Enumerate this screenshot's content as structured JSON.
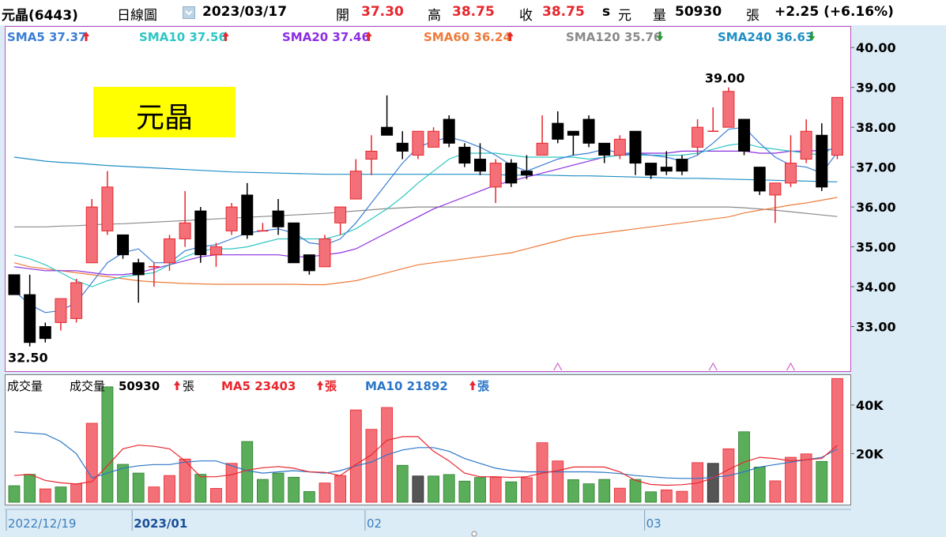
{
  "header": {
    "name": "元晶(6443)",
    "period": "日線圖",
    "date": "2023/03/17",
    "open_label": "開",
    "open": "37.30",
    "high_label": "高",
    "high": "38.75",
    "close_label": "收",
    "close": "38.75",
    "unit_s": "s",
    "unit": "元",
    "vol_label": "量",
    "vol": "50930",
    "vol_unit": "張",
    "change": "+2.25 (+6.16%)"
  },
  "legend": [
    {
      "label": "SMA5",
      "value": "37.37",
      "arrow": "up",
      "color": "#3b7fd6"
    },
    {
      "label": "SMA10",
      "value": "37.56",
      "arrow": "up",
      "color": "#2ec7c4"
    },
    {
      "label": "SMA20",
      "value": "37.46",
      "arrow": "up",
      "color": "#8b2ee0"
    },
    {
      "label": "SMA60",
      "value": "36.24",
      "arrow": "up",
      "color": "#ee7b3a"
    },
    {
      "label": "SMA120",
      "value": "35.76",
      "arrow": "down",
      "color": "#8a8a8a"
    },
    {
      "label": "SMA240",
      "value": "36.63",
      "arrow": "down",
      "color": "#1f8ec5"
    }
  ],
  "stock_label": "元晶",
  "annotations": {
    "high": "39.00",
    "low": "32.50"
  },
  "volume_legend": {
    "title": "成交量",
    "vol_label": "成交量",
    "vol_value": "50930",
    "vol_unit": "張",
    "ma5_label": "MA5",
    "ma5_value": "23403",
    "ma5_unit": "張",
    "ma10_label": "MA10",
    "ma10_value": "21892",
    "ma10_unit": "張"
  },
  "x_labels": [
    {
      "label": "2022/12/19",
      "index": 0,
      "bold": false
    },
    {
      "label": "2023/01",
      "index": 8,
      "bold": true
    },
    {
      "label": "02",
      "index": 23,
      "bold": false
    },
    {
      "label": "03",
      "index": 41,
      "bold": false
    }
  ],
  "colors": {
    "up": "#f37078",
    "down": "#000000",
    "vol_up": "#f37078",
    "vol_down": "#5aae5a",
    "vol_flat": "#555555",
    "axis_up": "#e8262d",
    "axis_down": "#2d9a38"
  },
  "chart_data": {
    "type": "candlestick",
    "y_ticks": [
      "40.00",
      "39.00",
      "38.00",
      "37.00",
      "36.00",
      "35.00",
      "34.00",
      "33.00"
    ],
    "ylim": [
      31.9,
      40.5
    ],
    "candles": [
      [
        34.3,
        33.8,
        34.3,
        33.8
      ],
      [
        33.8,
        32.6,
        34.3,
        32.5
      ],
      [
        33.0,
        32.7,
        33.1,
        32.6
      ],
      [
        33.1,
        33.7,
        33.7,
        32.9
      ],
      [
        33.2,
        34.1,
        34.2,
        33.1
      ],
      [
        34.6,
        36.0,
        36.2,
        34.6
      ],
      [
        35.4,
        36.5,
        36.9,
        35.3
      ],
      [
        35.3,
        34.8,
        35.3,
        34.7
      ],
      [
        34.6,
        34.3,
        34.7,
        33.6
      ],
      [
        34.5,
        34.5,
        34.6,
        34.0
      ],
      [
        34.6,
        35.2,
        35.3,
        34.4
      ],
      [
        35.2,
        35.6,
        36.4,
        35.0
      ],
      [
        35.9,
        34.8,
        36.0,
        34.6
      ],
      [
        34.8,
        35.0,
        35.1,
        34.5
      ],
      [
        35.4,
        36.0,
        36.1,
        35.3
      ],
      [
        36.3,
        35.3,
        36.6,
        35.2
      ],
      [
        35.4,
        35.4,
        35.6,
        35.4
      ],
      [
        35.9,
        35.5,
        36.2,
        35.3
      ],
      [
        35.6,
        34.6,
        35.6,
        34.6
      ],
      [
        34.8,
        34.4,
        34.8,
        34.3
      ],
      [
        34.5,
        35.2,
        35.3,
        34.5
      ],
      [
        35.6,
        36.0,
        36.0,
        35.3
      ],
      [
        36.2,
        36.9,
        37.2,
        36.2
      ],
      [
        37.2,
        37.4,
        37.8,
        36.8
      ],
      [
        38.0,
        37.8,
        38.8,
        37.8
      ],
      [
        37.6,
        37.4,
        37.9,
        37.2
      ],
      [
        37.3,
        37.9,
        37.9,
        37.2
      ],
      [
        37.5,
        37.9,
        38.0,
        37.5
      ],
      [
        38.2,
        37.6,
        38.3,
        37.5
      ],
      [
        37.5,
        37.1,
        37.6,
        37.0
      ],
      [
        37.2,
        36.9,
        37.6,
        36.8
      ],
      [
        36.5,
        37.1,
        37.2,
        36.1
      ],
      [
        37.1,
        36.6,
        37.2,
        36.5
      ],
      [
        36.9,
        36.8,
        37.3,
        36.7
      ],
      [
        37.3,
        37.6,
        38.3,
        37.3
      ],
      [
        38.1,
        37.7,
        38.4,
        37.6
      ],
      [
        37.9,
        37.8,
        37.9,
        37.3
      ],
      [
        38.2,
        37.6,
        38.3,
        37.5
      ],
      [
        37.6,
        37.3,
        37.6,
        37.1
      ],
      [
        37.3,
        37.7,
        37.8,
        37.2
      ],
      [
        37.9,
        37.1,
        37.9,
        36.8
      ],
      [
        37.1,
        36.8,
        37.1,
        36.7
      ],
      [
        37.0,
        36.9,
        37.4,
        36.8
      ],
      [
        37.2,
        36.9,
        37.3,
        36.8
      ],
      [
        37.5,
        38.0,
        38.2,
        37.3
      ],
      [
        37.9,
        37.9,
        38.5,
        37.9
      ],
      [
        38.0,
        38.9,
        39.0,
        38.0
      ],
      [
        38.2,
        37.4,
        38.2,
        37.3
      ],
      [
        37.0,
        36.4,
        37.0,
        36.3
      ],
      [
        36.3,
        36.6,
        36.6,
        35.6
      ],
      [
        36.6,
        37.1,
        37.8,
        36.5
      ],
      [
        37.2,
        37.9,
        38.2,
        37.1
      ],
      [
        37.8,
        36.5,
        38.1,
        36.4
      ],
      [
        37.3,
        38.75,
        38.75,
        37.2
      ]
    ],
    "sma5": [
      33.9,
      33.55,
      33.35,
      33.4,
      33.6,
      34.1,
      34.6,
      34.85,
      34.95,
      34.6,
      34.6,
      34.9,
      35.0,
      35.05,
      35.2,
      35.35,
      35.4,
      35.45,
      35.35,
      35.1,
      35.05,
      35.2,
      35.6,
      36.1,
      36.6,
      37.1,
      37.5,
      37.65,
      37.75,
      37.65,
      37.5,
      37.3,
      37.05,
      36.9,
      37.05,
      37.2,
      37.3,
      37.35,
      37.45,
      37.35,
      37.35,
      37.3,
      37.25,
      37.15,
      37.3,
      37.6,
      37.95,
      38.0,
      37.6,
      37.25,
      37.05,
      37.0,
      36.85,
      37.37
    ],
    "sma10": [
      34.8,
      34.7,
      34.55,
      34.35,
      34.15,
      34.0,
      34.15,
      34.25,
      34.3,
      34.35,
      34.55,
      34.75,
      34.9,
      34.95,
      34.95,
      35.0,
      35.1,
      35.2,
      35.2,
      35.2,
      35.2,
      35.3,
      35.45,
      35.7,
      35.95,
      36.25,
      36.6,
      36.9,
      37.2,
      37.35,
      37.35,
      37.35,
      37.3,
      37.25,
      37.25,
      37.25,
      37.25,
      37.2,
      37.25,
      37.3,
      37.3,
      37.3,
      37.3,
      37.3,
      37.35,
      37.45,
      37.55,
      37.6,
      37.5,
      37.45,
      37.4,
      37.35,
      37.3,
      37.56
    ],
    "sma20": [
      34.5,
      34.45,
      34.4,
      34.4,
      34.4,
      34.35,
      34.3,
      34.3,
      34.35,
      34.45,
      34.55,
      34.65,
      34.75,
      34.8,
      34.8,
      34.8,
      34.8,
      34.8,
      34.75,
      34.75,
      34.8,
      34.85,
      34.95,
      35.15,
      35.35,
      35.55,
      35.75,
      35.95,
      36.1,
      36.25,
      36.4,
      36.55,
      36.65,
      36.75,
      36.85,
      36.95,
      37.05,
      37.15,
      37.25,
      37.3,
      37.35,
      37.35,
      37.35,
      37.4,
      37.4,
      37.4,
      37.4,
      37.4,
      37.35,
      37.35,
      37.4,
      37.4,
      37.42,
      37.46
    ],
    "sma60": [
      34.6,
      34.5,
      34.45,
      34.4,
      34.35,
      34.3,
      34.25,
      34.2,
      34.15,
      34.12,
      34.1,
      34.08,
      34.07,
      34.06,
      34.06,
      34.06,
      34.06,
      34.06,
      34.06,
      34.05,
      34.05,
      34.1,
      34.15,
      34.25,
      34.35,
      34.45,
      34.55,
      34.6,
      34.65,
      34.7,
      34.75,
      34.8,
      34.85,
      34.95,
      35.05,
      35.15,
      35.25,
      35.3,
      35.35,
      35.4,
      35.45,
      35.5,
      35.55,
      35.6,
      35.65,
      35.7,
      35.75,
      35.85,
      35.92,
      35.98,
      36.05,
      36.1,
      36.17,
      36.24
    ],
    "sma120": [
      35.5,
      35.5,
      35.5,
      35.52,
      35.53,
      35.55,
      35.57,
      35.58,
      35.6,
      35.62,
      35.64,
      35.66,
      35.68,
      35.7,
      35.72,
      35.74,
      35.76,
      35.78,
      35.8,
      35.82,
      35.84,
      35.87,
      35.9,
      35.93,
      35.96,
      35.98,
      36.0,
      36.0,
      36.0,
      36.0,
      36.0,
      36.0,
      36.0,
      36.0,
      36.0,
      36.0,
      36.0,
      36.0,
      36.0,
      36.0,
      36.0,
      36.0,
      36.0,
      36.0,
      36.0,
      36.0,
      36.0,
      35.98,
      35.95,
      35.92,
      35.88,
      35.84,
      35.8,
      35.76
    ],
    "sma240": [
      37.25,
      37.2,
      37.15,
      37.12,
      37.1,
      37.07,
      37.04,
      37.02,
      37.0,
      36.98,
      36.96,
      36.94,
      36.92,
      36.9,
      36.88,
      36.87,
      36.86,
      36.85,
      36.84,
      36.83,
      36.82,
      36.82,
      36.82,
      36.82,
      36.82,
      36.82,
      36.82,
      36.82,
      36.82,
      36.82,
      36.82,
      36.81,
      36.8,
      36.8,
      36.8,
      36.79,
      36.78,
      36.78,
      36.77,
      36.76,
      36.75,
      36.74,
      36.73,
      36.72,
      36.72,
      36.71,
      36.7,
      36.69,
      36.68,
      36.67,
      36.66,
      36.65,
      36.64,
      36.63
    ],
    "volume": {
      "y_ticks": [
        "40K",
        "20K"
      ],
      "ylim": [
        0,
        52000
      ],
      "values": [
        6800,
        11500,
        5500,
        6300,
        7600,
        32500,
        47500,
        15600,
        12000,
        6300,
        11000,
        17800,
        11500,
        5700,
        16000,
        25000,
        9400,
        12000,
        10300,
        4400,
        7900,
        11000,
        38000,
        30000,
        39000,
        15200,
        10800,
        10800,
        11400,
        8700,
        10200,
        10300,
        8400,
        10100,
        24500,
        17000,
        9300,
        7600,
        9400,
        5800,
        9400,
        4300,
        5100,
        4500,
        16300,
        16000,
        22000,
        29000,
        14500,
        8800,
        18500,
        19900,
        16800,
        50930
      ],
      "dir": [
        "down",
        "down",
        "up",
        "down",
        "up",
        "up",
        "down",
        "down",
        "down",
        "up",
        "up",
        "up",
        "down",
        "up",
        "up",
        "down",
        "down",
        "down",
        "down",
        "down",
        "up",
        "up",
        "up",
        "up",
        "up",
        "down",
        "flat",
        "down",
        "down",
        "down",
        "down",
        "up",
        "down",
        "up",
        "up",
        "up",
        "down",
        "down",
        "down",
        "up",
        "down",
        "down",
        "up",
        "up",
        "up",
        "flat",
        "up",
        "down",
        "down",
        "up",
        "up",
        "up",
        "down",
        "up"
      ],
      "ma5": [
        11000,
        11500,
        9000,
        8000,
        7500,
        8500,
        15000,
        22000,
        23500,
        23000,
        22000,
        17000,
        10500,
        10500,
        11300,
        13200,
        14200,
        14700,
        14000,
        12500,
        12300,
        11000,
        15500,
        19500,
        25500,
        27000,
        27000,
        21000,
        17000,
        12000,
        10500,
        10500,
        10200,
        10500,
        12000,
        13000,
        14500,
        14500,
        14500,
        12500,
        9000,
        7300,
        7000,
        7200,
        7900,
        10000,
        13500,
        16500,
        18500,
        18000,
        17000,
        17500,
        18000,
        23403
      ],
      "ma10": [
        29000,
        28500,
        28000,
        25000,
        20000,
        10000,
        12000,
        14000,
        15000,
        15500,
        15500,
        16500,
        17000,
        17000,
        15000,
        13000,
        12000,
        12500,
        13000,
        12500,
        12000,
        13000,
        15000,
        16500,
        19500,
        21500,
        22500,
        22500,
        21000,
        18000,
        16000,
        14000,
        13000,
        12500,
        12500,
        12500,
        12500,
        12500,
        12300,
        11800,
        11000,
        10500,
        10000,
        9800,
        9800,
        10200,
        11000,
        12500,
        14500,
        15500,
        16500,
        17500,
        18500,
        21892
      ]
    }
  }
}
